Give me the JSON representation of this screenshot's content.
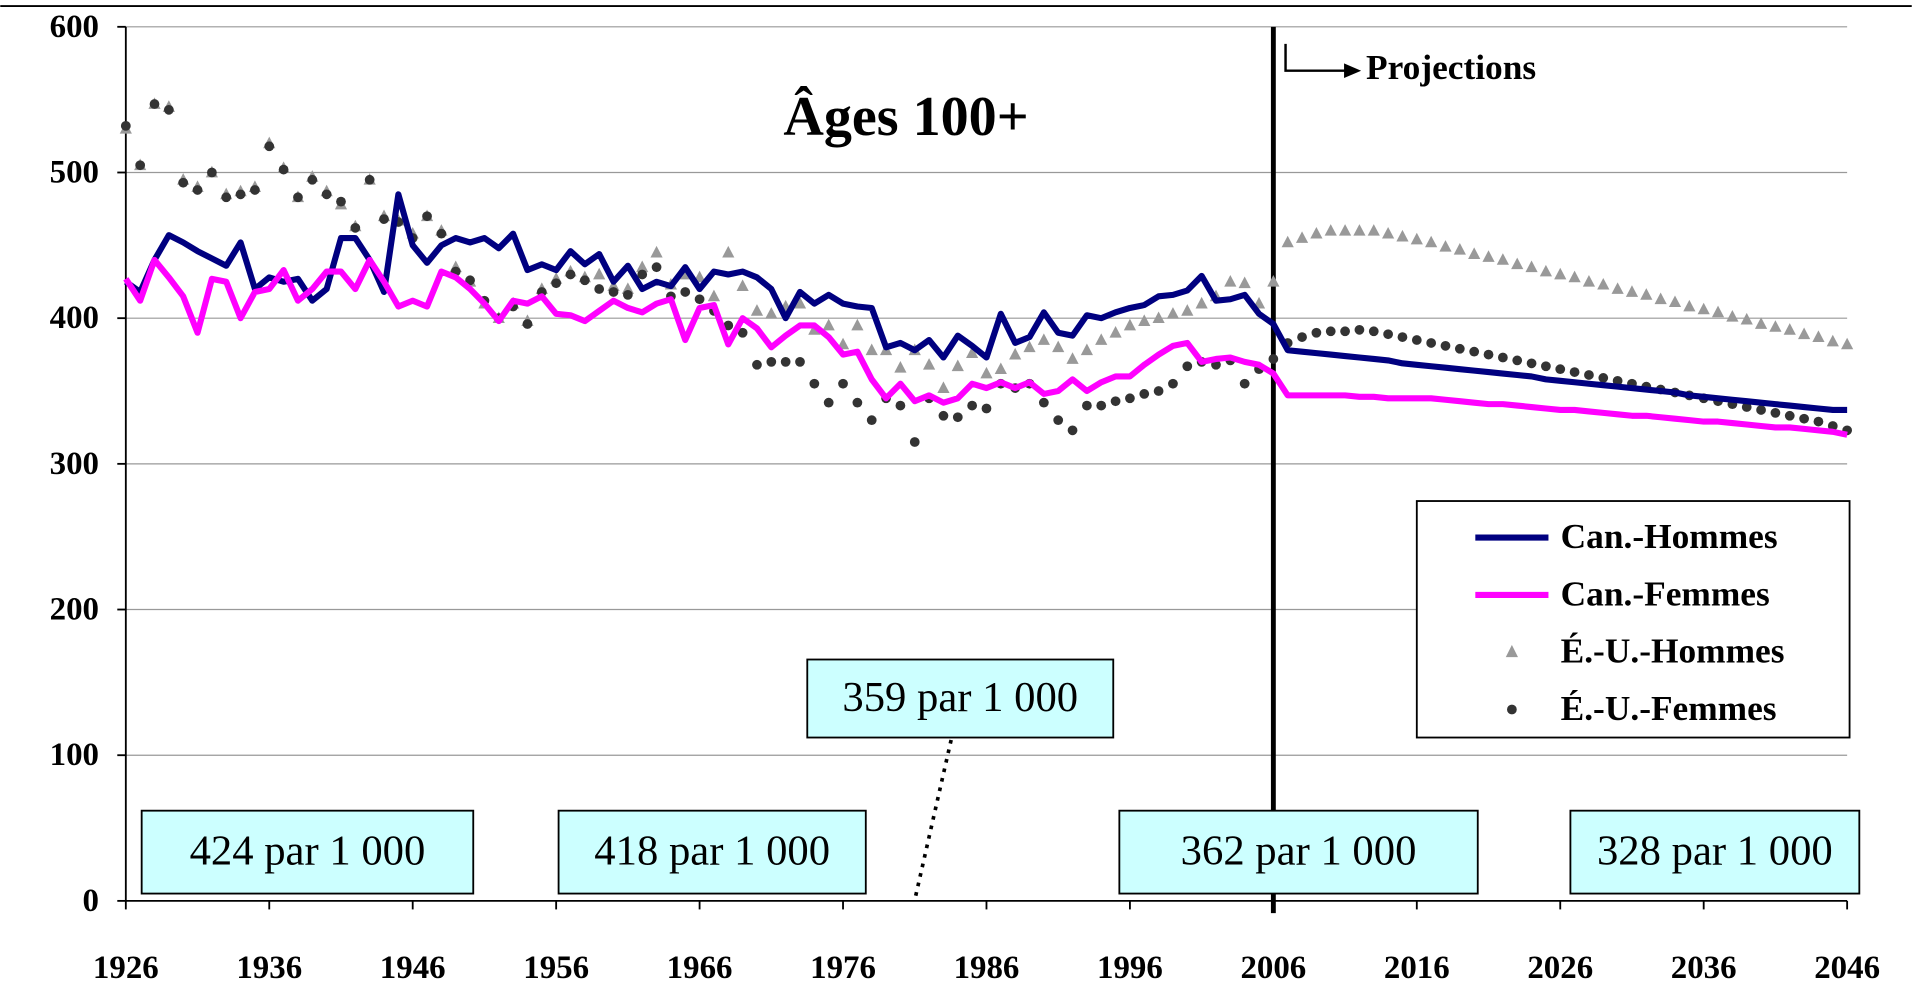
{
  "chart_data": {
    "type": "line",
    "title": "Âges 100+",
    "projection_label": "Projections",
    "projection_start": 2006,
    "x": [
      1926,
      1927,
      1928,
      1929,
      1930,
      1931,
      1932,
      1933,
      1934,
      1935,
      1936,
      1937,
      1938,
      1939,
      1940,
      1941,
      1942,
      1943,
      1944,
      1945,
      1946,
      1947,
      1948,
      1949,
      1950,
      1951,
      1952,
      1953,
      1954,
      1955,
      1956,
      1957,
      1958,
      1959,
      1960,
      1961,
      1962,
      1963,
      1964,
      1965,
      1966,
      1967,
      1968,
      1969,
      1970,
      1971,
      1972,
      1973,
      1974,
      1975,
      1976,
      1977,
      1978,
      1979,
      1980,
      1981,
      1982,
      1983,
      1984,
      1985,
      1986,
      1987,
      1988,
      1989,
      1990,
      1991,
      1992,
      1993,
      1994,
      1995,
      1996,
      1997,
      1998,
      1999,
      2000,
      2001,
      2002,
      2003,
      2004,
      2005,
      2006,
      2007,
      2008,
      2009,
      2010,
      2011,
      2012,
      2013,
      2014,
      2015,
      2016,
      2017,
      2018,
      2019,
      2020,
      2021,
      2022,
      2023,
      2024,
      2025,
      2026,
      2027,
      2028,
      2029,
      2030,
      2031,
      2032,
      2033,
      2034,
      2035,
      2036,
      2037,
      2038,
      2039,
      2040,
      2041,
      2042,
      2043,
      2044,
      2045,
      2046
    ],
    "series": [
      {
        "name": "Can.-Hommes",
        "color": "#000080",
        "style": "line",
        "values": [
          425,
          418,
          440,
          457,
          452,
          446,
          441,
          436,
          452,
          420,
          428,
          425,
          427,
          412,
          420,
          455,
          455,
          440,
          418,
          485,
          450,
          438,
          450,
          455,
          452,
          455,
          448,
          458,
          433,
          437,
          433,
          446,
          437,
          444,
          425,
          436,
          420,
          425,
          422,
          435,
          420,
          432,
          430,
          432,
          428,
          420,
          400,
          418,
          410,
          416,
          410,
          408,
          407,
          380,
          383,
          378,
          385,
          373,
          388,
          381,
          373,
          403,
          383,
          387,
          404,
          390,
          388,
          402,
          400,
          404,
          407,
          409,
          415,
          416,
          419,
          429,
          412,
          413,
          416,
          403,
          396,
          378,
          377,
          376,
          375,
          374,
          373,
          372,
          371,
          369,
          368,
          367,
          366,
          365,
          364,
          363,
          362,
          361,
          360,
          358,
          357,
          356,
          355,
          354,
          353,
          352,
          351,
          350,
          349,
          347,
          346,
          345,
          344,
          343,
          342,
          341,
          340,
          339,
          338,
          337,
          337
        ]
      },
      {
        "name": "Can.-Femmes",
        "color": "#ff00ff",
        "style": "line",
        "values": [
          427,
          412,
          440,
          428,
          415,
          390,
          427,
          425,
          400,
          418,
          420,
          433,
          412,
          420,
          432,
          432,
          420,
          440,
          425,
          408,
          412,
          408,
          432,
          428,
          420,
          410,
          398,
          412,
          410,
          415,
          403,
          402,
          398,
          405,
          412,
          407,
          404,
          410,
          413,
          385,
          407,
          409,
          382,
          400,
          393,
          380,
          388,
          395,
          395,
          387,
          375,
          377,
          358,
          345,
          355,
          343,
          347,
          342,
          345,
          355,
          352,
          356,
          352,
          356,
          348,
          350,
          358,
          350,
          356,
          360,
          360,
          368,
          375,
          381,
          383,
          370,
          372,
          373,
          370,
          368,
          362,
          347,
          347,
          347,
          347,
          347,
          346,
          346,
          345,
          345,
          345,
          345,
          344,
          343,
          342,
          341,
          341,
          340,
          339,
          338,
          337,
          337,
          336,
          335,
          334,
          333,
          333,
          332,
          331,
          330,
          329,
          329,
          328,
          327,
          326,
          325,
          325,
          324,
          323,
          322,
          320
        ]
      },
      {
        "name": "É.-U.-Hommes",
        "color": "#999999",
        "style": "triangle",
        "values": [
          530,
          505,
          547,
          545,
          495,
          490,
          500,
          485,
          487,
          490,
          520,
          503,
          483,
          497,
          487,
          478,
          463,
          495,
          470,
          467,
          458,
          470,
          460,
          435,
          425,
          410,
          400,
          410,
          398,
          420,
          427,
          432,
          428,
          430,
          422,
          420,
          435,
          445,
          423,
          430,
          428,
          415,
          445,
          422,
          405,
          403,
          408,
          410,
          392,
          395,
          382,
          395,
          378,
          378,
          366,
          378,
          368,
          352,
          367,
          376,
          362,
          365,
          375,
          380,
          385,
          380,
          372,
          378,
          385,
          390,
          395,
          398,
          400,
          403,
          405,
          410,
          415,
          425,
          424,
          410,
          425,
          452,
          455,
          458,
          460,
          460,
          460,
          460,
          458,
          456,
          454,
          452,
          449,
          447,
          444,
          442,
          440,
          437,
          435,
          432,
          430,
          428,
          425,
          423,
          420,
          418,
          416,
          413,
          411,
          408,
          406,
          404,
          401,
          399,
          396,
          394,
          392,
          389,
          387,
          384,
          382
        ]
      },
      {
        "name": "É.-U.-Femmes",
        "color": "#333333",
        "style": "circle",
        "values": [
          532,
          505,
          547,
          543,
          493,
          488,
          500,
          483,
          485,
          488,
          518,
          502,
          483,
          495,
          485,
          480,
          462,
          495,
          468,
          466,
          455,
          470,
          458,
          432,
          426,
          412,
          400,
          408,
          396,
          418,
          424,
          430,
          426,
          420,
          418,
          416,
          430,
          435,
          415,
          418,
          413,
          405,
          395,
          390,
          368,
          370,
          370,
          370,
          355,
          342,
          355,
          342,
          330,
          345,
          340,
          315,
          345,
          333,
          332,
          340,
          338,
          355,
          352,
          355,
          342,
          330,
          323,
          340,
          340,
          343,
          345,
          348,
          350,
          355,
          367,
          370,
          368,
          371,
          355,
          365,
          372,
          383,
          387,
          390,
          391,
          391,
          392,
          391,
          389,
          387,
          385,
          383,
          381,
          379,
          377,
          375,
          373,
          371,
          369,
          367,
          365,
          363,
          361,
          359,
          357,
          355,
          353,
          351,
          349,
          347,
          345,
          343,
          341,
          339,
          337,
          335,
          333,
          331,
          329,
          326,
          323
        ]
      }
    ],
    "annotations": [
      "424 par 1 000",
      "418 par 1 000",
      "359 par 1 000",
      "362 par 1 000",
      "328 par 1 000"
    ],
    "xlim": [
      1926,
      2046
    ],
    "xticks": [
      1926,
      1936,
      1946,
      1956,
      1966,
      1976,
      1986,
      1996,
      2006,
      2016,
      2026,
      2036,
      2046
    ],
    "ylim": [
      0,
      600
    ],
    "yticks": [
      0,
      100,
      200,
      300,
      400,
      500,
      600
    ],
    "grid": true,
    "legend": "right"
  }
}
